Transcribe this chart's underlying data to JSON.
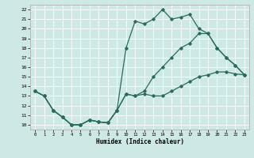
{
  "xlabel": "Humidex (Indice chaleur)",
  "xlim": [
    -0.5,
    23.5
  ],
  "ylim": [
    9.5,
    22.5
  ],
  "xticks": [
    0,
    1,
    2,
    3,
    4,
    5,
    6,
    7,
    8,
    9,
    10,
    11,
    12,
    13,
    14,
    15,
    16,
    17,
    18,
    19,
    20,
    21,
    22,
    23
  ],
  "yticks": [
    10,
    11,
    12,
    13,
    14,
    15,
    16,
    17,
    18,
    19,
    20,
    21,
    22
  ],
  "background_color": "#cde8e5",
  "grid_color": "#ffffff",
  "line_color": "#2a6b5e",
  "line1_x": [
    0,
    1,
    2,
    3,
    4,
    5,
    6,
    7,
    8,
    9,
    10,
    11,
    12,
    13,
    14,
    15,
    16,
    17,
    18,
    19,
    20,
    21,
    22,
    23
  ],
  "line1_y": [
    13.5,
    13.0,
    11.5,
    10.8,
    10.0,
    10.0,
    10.5,
    10.3,
    10.2,
    11.5,
    13.2,
    13.0,
    13.2,
    13.0,
    13.0,
    13.5,
    14.0,
    14.5,
    15.0,
    15.2,
    15.5,
    15.5,
    15.3,
    15.2
  ],
  "line2_x": [
    0,
    1,
    2,
    3,
    4,
    5,
    6,
    7,
    8,
    9,
    10,
    11,
    12,
    13,
    14,
    15,
    16,
    17,
    18,
    19,
    20,
    21,
    22,
    23
  ],
  "line2_y": [
    13.5,
    13.0,
    11.5,
    10.8,
    10.0,
    10.0,
    10.5,
    10.3,
    10.2,
    11.5,
    18.0,
    20.8,
    20.5,
    21.0,
    22.0,
    21.0,
    21.2,
    21.5,
    20.0,
    19.5,
    18.0,
    17.0,
    16.2,
    15.2
  ],
  "line3_x": [
    0,
    1,
    2,
    3,
    4,
    5,
    6,
    7,
    8,
    9,
    10,
    11,
    12,
    13,
    14,
    15,
    16,
    17,
    18,
    19,
    20,
    21,
    22,
    23
  ],
  "line3_y": [
    13.5,
    13.0,
    11.5,
    10.8,
    10.0,
    10.0,
    10.5,
    10.3,
    10.2,
    11.5,
    13.2,
    13.0,
    13.5,
    15.0,
    16.0,
    17.0,
    18.0,
    18.5,
    19.5,
    19.5,
    18.0,
    17.0,
    16.2,
    15.2
  ]
}
